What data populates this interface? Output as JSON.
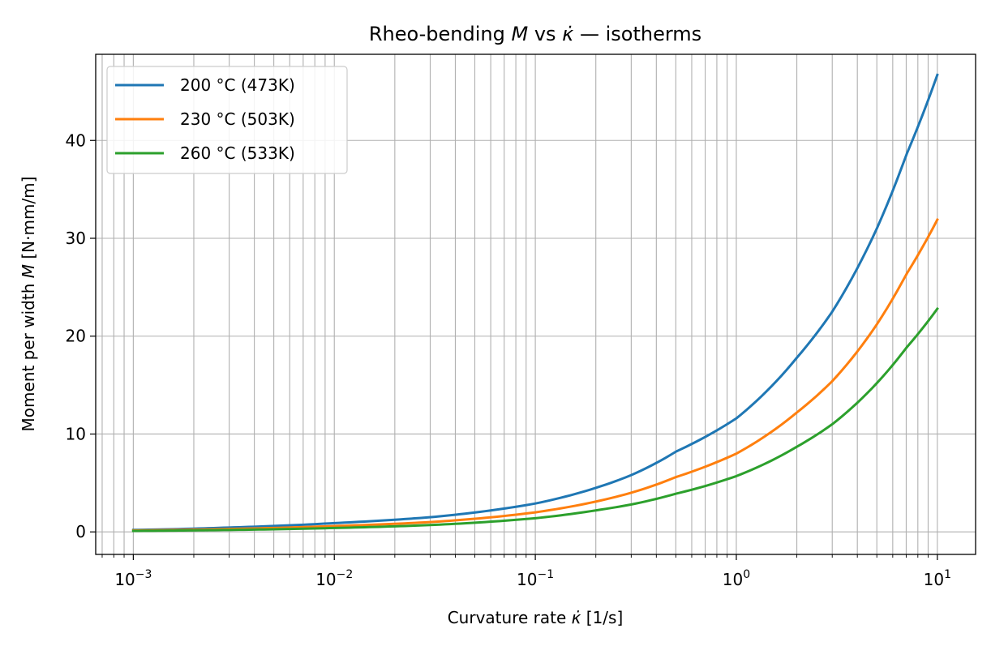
{
  "chart_data": {
    "type": "line",
    "title": {
      "prefix": "Rheo-bending ",
      "m_symbol": "M",
      "middle": " vs ",
      "kdot_symbol": "κ̇",
      "suffix": " — isotherms"
    },
    "xlabel": {
      "prefix": "Curvature rate ",
      "kdot_symbol": "κ̇",
      "suffix": " [1/s]"
    },
    "ylabel": {
      "prefix": "Moment per width ",
      "m_symbol": "M",
      "suffix": " [N·mm/m]"
    },
    "x_scale": "log",
    "xlim": [
      0.00065,
      15.5
    ],
    "ylim": [
      -2.3,
      48.8
    ],
    "grid": "both (major and minor x, major y)",
    "legend_position": "upper-left",
    "x_ticks": [
      {
        "base": "10",
        "exp": "−3"
      },
      {
        "base": "10",
        "exp": "−2"
      },
      {
        "base": "10",
        "exp": "−1"
      },
      {
        "base": "10",
        "exp": "0"
      },
      {
        "base": "10",
        "exp": "1"
      }
    ],
    "y_ticks": [
      "0",
      "10",
      "20",
      "30",
      "40"
    ],
    "series": [
      {
        "name": "200 °C (473K)",
        "color": "#1f77b4",
        "x": [
          0.001,
          0.003,
          0.01,
          0.03,
          0.1,
          0.2,
          0.3,
          0.5,
          1,
          2,
          3,
          5,
          7,
          10
        ],
        "y": [
          0.2,
          0.45,
          0.9,
          1.5,
          2.9,
          4.5,
          5.8,
          8.2,
          11.6,
          17.8,
          22.5,
          31.0,
          38.5,
          46.7
        ]
      },
      {
        "name": "230 °C (503K)",
        "color": "#ff7f0e",
        "x": [
          0.001,
          0.003,
          0.01,
          0.03,
          0.1,
          0.2,
          0.3,
          0.5,
          1,
          2,
          3,
          5,
          7,
          10
        ],
        "y": [
          0.15,
          0.3,
          0.6,
          1.0,
          2.0,
          3.1,
          4.0,
          5.6,
          8.0,
          12.2,
          15.4,
          21.2,
          26.3,
          31.9
        ]
      },
      {
        "name": "260 °C (533K)",
        "color": "#2ca02c",
        "x": [
          0.001,
          0.003,
          0.01,
          0.03,
          0.1,
          0.2,
          0.3,
          0.5,
          1,
          2,
          3,
          5,
          7,
          10
        ],
        "y": [
          0.1,
          0.2,
          0.4,
          0.7,
          1.4,
          2.2,
          2.8,
          3.9,
          5.7,
          8.7,
          11.0,
          15.2,
          18.8,
          22.8
        ]
      }
    ]
  }
}
